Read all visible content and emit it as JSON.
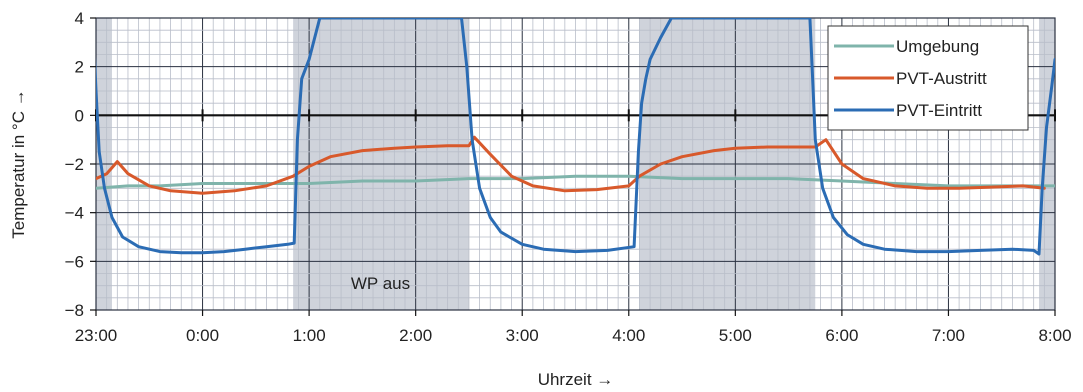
{
  "chart_data": {
    "type": "line",
    "xlabel": "Uhrzeit →",
    "ylabel": "Temperatur in °C →",
    "x_range_hours": [
      23,
      32
    ],
    "ylim": [
      -8,
      4
    ],
    "x_ticks": [
      {
        "h": 23,
        "label": "23:00"
      },
      {
        "h": 24,
        "label": "0:00"
      },
      {
        "h": 25,
        "label": "1:00"
      },
      {
        "h": 26,
        "label": "2:00"
      },
      {
        "h": 27,
        "label": "3:00"
      },
      {
        "h": 28,
        "label": "4:00"
      },
      {
        "h": 29,
        "label": "5:00"
      },
      {
        "h": 30,
        "label": "6:00"
      },
      {
        "h": 31,
        "label": "7:00"
      },
      {
        "h": 32,
        "label": "8:00"
      }
    ],
    "y_ticks": [
      {
        "v": 4,
        "label": "4"
      },
      {
        "v": 2,
        "label": "2"
      },
      {
        "v": 0,
        "label": "0"
      },
      {
        "v": -2,
        "label": "−2"
      },
      {
        "v": -4,
        "label": "−4"
      },
      {
        "v": -6,
        "label": "−6"
      },
      {
        "v": -8,
        "label": "−8"
      }
    ],
    "grid": true,
    "legend_position": "top-right",
    "shaded_intervals_hours": [
      [
        22.9,
        23.15
      ],
      [
        24.85,
        26.5
      ],
      [
        28.1,
        29.75
      ],
      [
        31.85,
        32.1
      ]
    ],
    "annotation": {
      "text": "WP aus",
      "x_h": 25.67,
      "y": -6.9
    },
    "series": [
      {
        "name": "Umgebung",
        "color": "#7fb4ab",
        "x": [
          23.0,
          23.3,
          23.6,
          24.0,
          24.5,
          25.0,
          25.5,
          26.0,
          26.5,
          27.0,
          27.5,
          28.0,
          28.5,
          29.0,
          29.5,
          30.0,
          30.5,
          31.0,
          31.5,
          32.0
        ],
        "y": [
          -3.0,
          -2.9,
          -2.9,
          -2.8,
          -2.8,
          -2.8,
          -2.7,
          -2.7,
          -2.6,
          -2.6,
          -2.5,
          -2.5,
          -2.6,
          -2.6,
          -2.6,
          -2.7,
          -2.8,
          -2.9,
          -2.9,
          -2.9
        ]
      },
      {
        "name": "PVT-Austritt",
        "color": "#d8592b",
        "x": [
          23.0,
          23.1,
          23.2,
          23.3,
          23.5,
          23.7,
          24.0,
          24.3,
          24.6,
          24.85,
          25.0,
          25.2,
          25.5,
          25.8,
          26.0,
          26.3,
          26.5,
          26.55,
          26.7,
          26.9,
          27.1,
          27.4,
          27.7,
          28.0,
          28.1,
          28.3,
          28.5,
          28.8,
          29.0,
          29.3,
          29.6,
          29.75,
          29.85,
          30.0,
          30.2,
          30.5,
          30.8,
          31.1,
          31.4,
          31.7,
          31.9
        ],
        "y": [
          -2.6,
          -2.4,
          -1.9,
          -2.4,
          -2.9,
          -3.1,
          -3.2,
          -3.1,
          -2.9,
          -2.5,
          -2.1,
          -1.7,
          -1.45,
          -1.35,
          -1.3,
          -1.25,
          -1.25,
          -0.9,
          -1.6,
          -2.5,
          -2.9,
          -3.1,
          -3.05,
          -2.9,
          -2.5,
          -2.0,
          -1.7,
          -1.45,
          -1.35,
          -1.3,
          -1.3,
          -1.3,
          -1.0,
          -2.0,
          -2.6,
          -2.9,
          -3.0,
          -3.0,
          -2.95,
          -2.9,
          -3.0
        ]
      },
      {
        "name": "PVT-Eintritt",
        "color": "#2b6cb4",
        "x": [
          22.97,
          23.0,
          23.03,
          23.08,
          23.15,
          23.25,
          23.4,
          23.6,
          23.8,
          24.0,
          24.2,
          24.4,
          24.6,
          24.8,
          24.86,
          24.89,
          24.93,
          25.0,
          25.1,
          26.43,
          26.48,
          26.53,
          26.6,
          26.7,
          26.8,
          27.0,
          27.2,
          27.5,
          27.8,
          28.05,
          28.09,
          28.12,
          28.16,
          28.2,
          28.3,
          28.4,
          29.7,
          29.72,
          29.75,
          29.82,
          29.92,
          30.05,
          30.2,
          30.4,
          30.7,
          31.0,
          31.3,
          31.6,
          31.8,
          31.85,
          31.88,
          31.92,
          31.97,
          32.0
        ],
        "y": [
          4.0,
          1.0,
          -1.5,
          -3.0,
          -4.2,
          -5.0,
          -5.4,
          -5.6,
          -5.65,
          -5.65,
          -5.6,
          -5.5,
          -5.4,
          -5.3,
          -5.25,
          -1.0,
          1.5,
          2.3,
          4.0,
          4.0,
          2.0,
          -1.0,
          -3.0,
          -4.2,
          -4.8,
          -5.3,
          -5.5,
          -5.6,
          -5.55,
          -5.4,
          -1.5,
          0.5,
          1.5,
          2.3,
          3.2,
          4.0,
          4.0,
          2.0,
          -1.0,
          -3.0,
          -4.2,
          -4.9,
          -5.3,
          -5.5,
          -5.6,
          -5.6,
          -5.55,
          -5.5,
          -5.55,
          -5.7,
          -3.0,
          -0.5,
          1.2,
          2.3
        ]
      }
    ]
  }
}
